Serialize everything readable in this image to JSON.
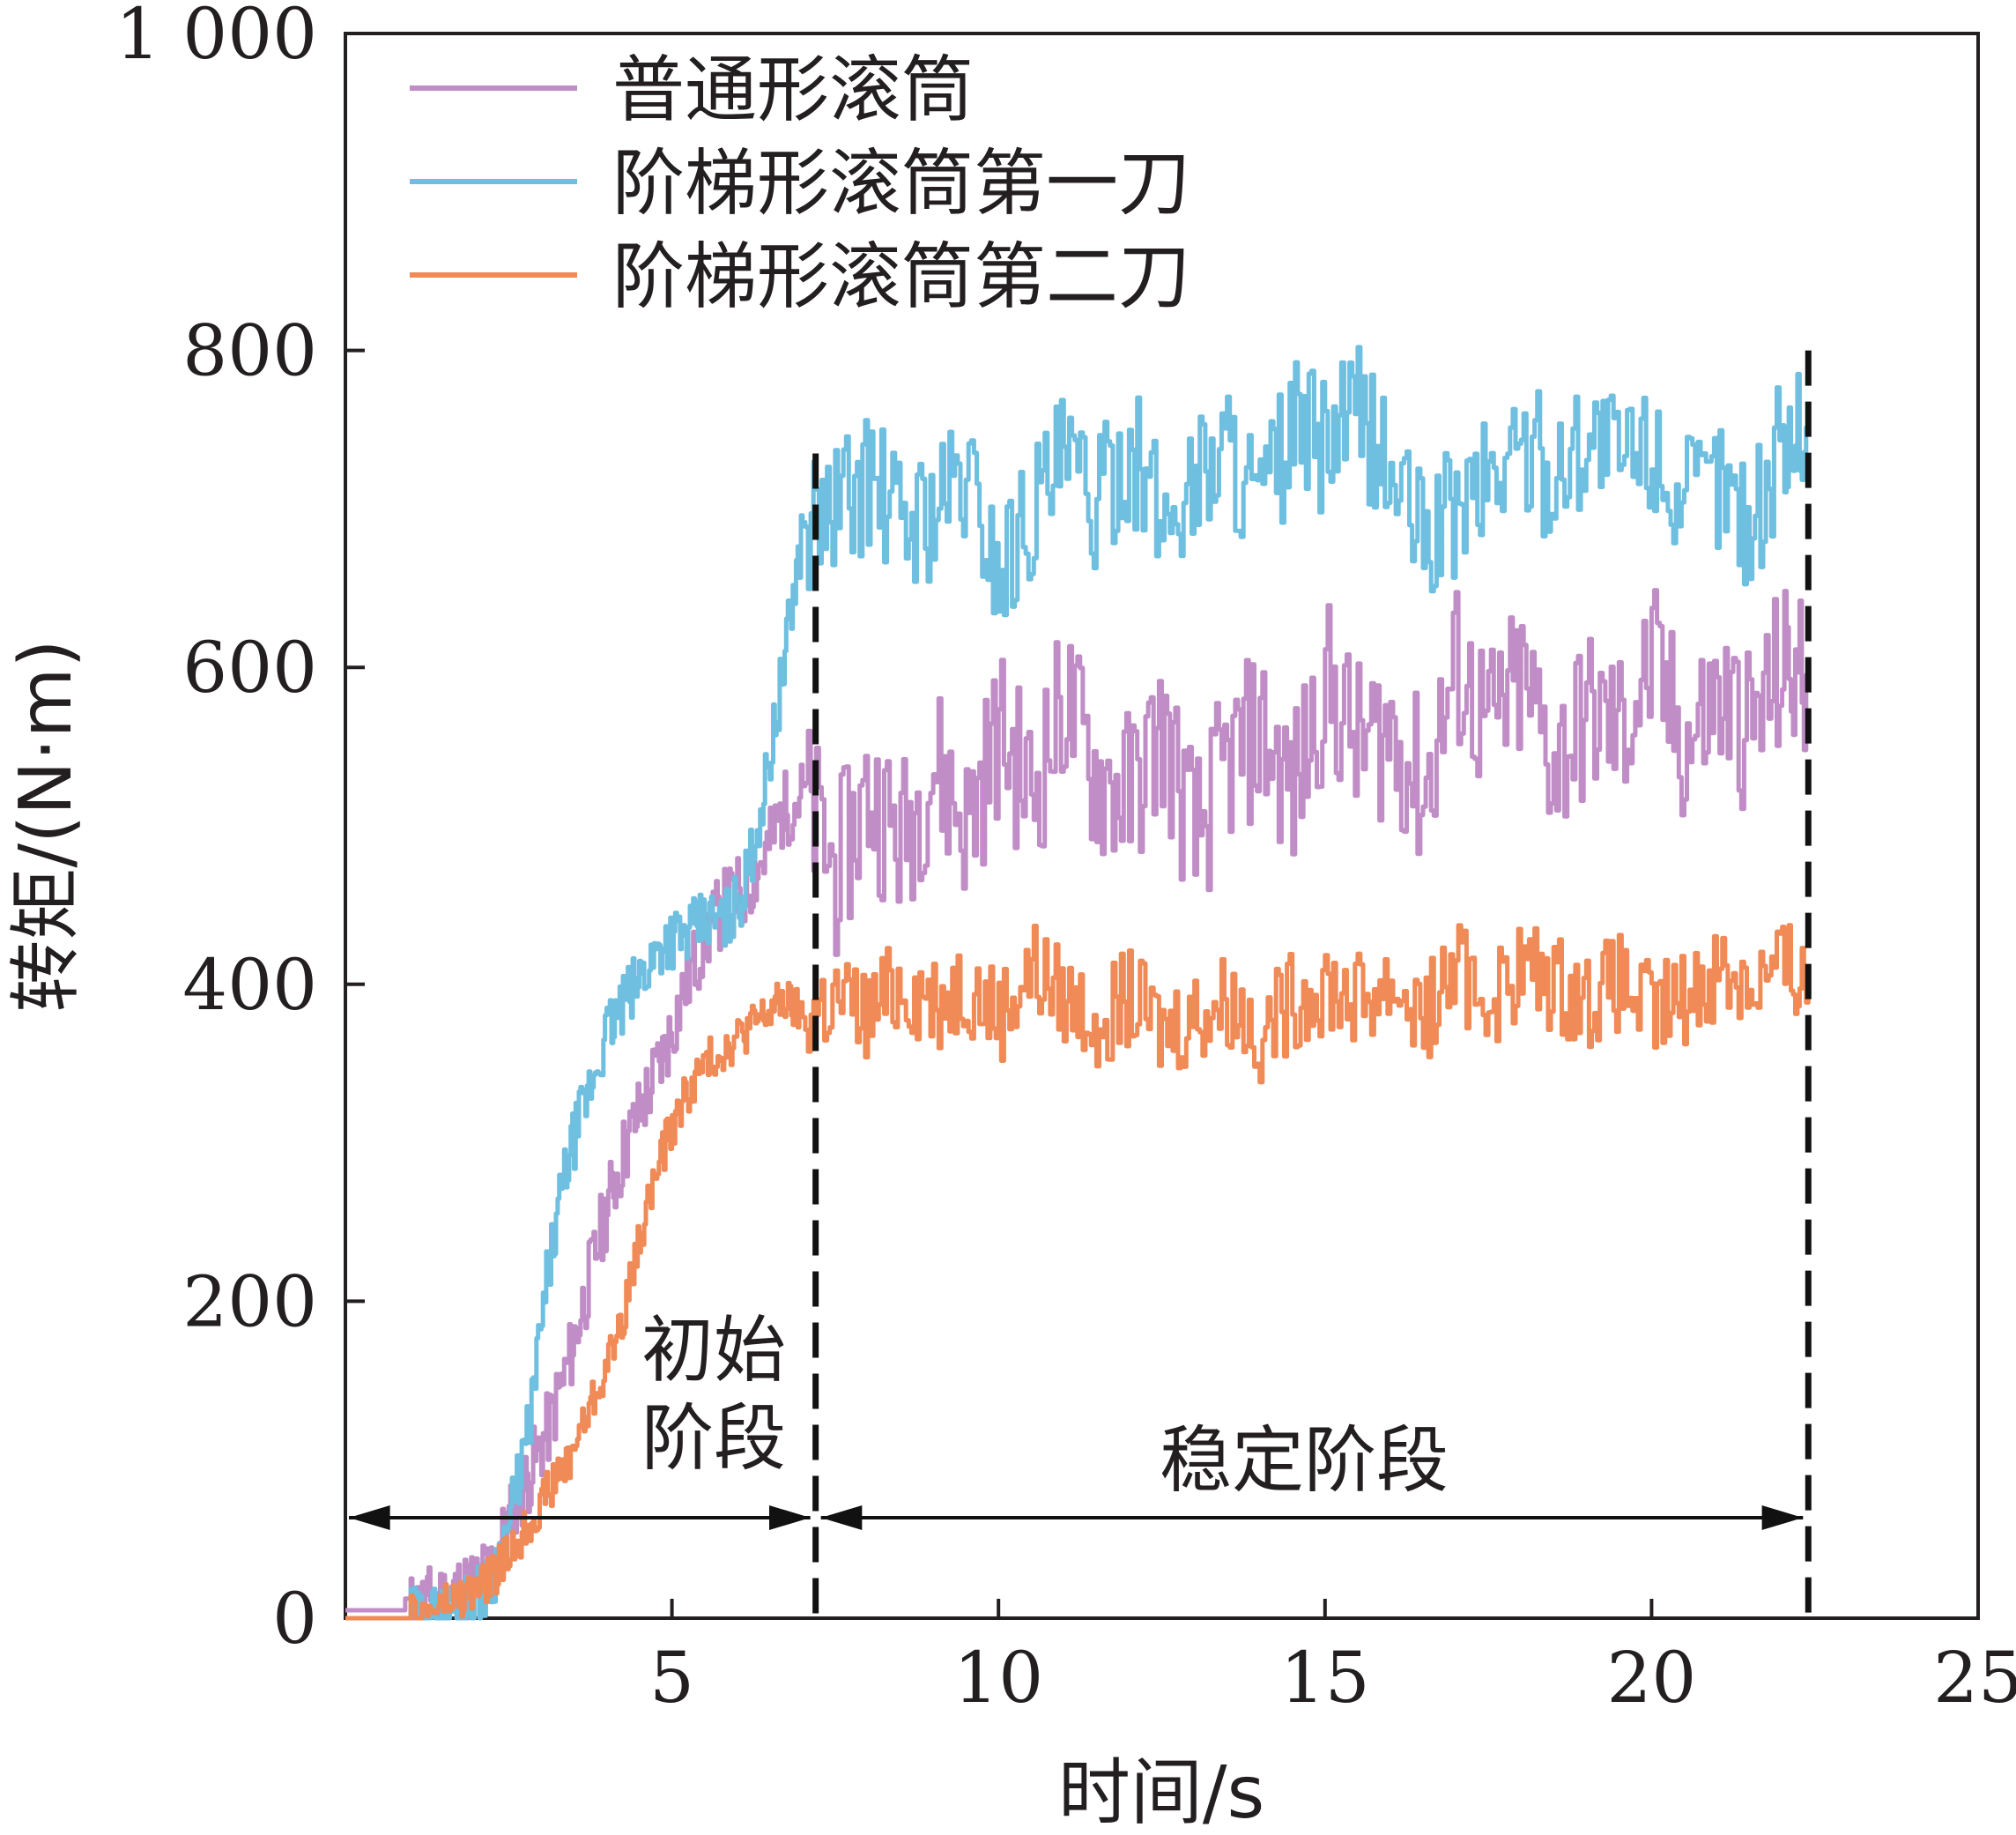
{
  "chart_data": {
    "type": "line",
    "xlabel": "时间/s",
    "ylabel": "转矩/(N·m)",
    "xlim": [
      0,
      25
    ],
    "ylim": [
      0,
      1000
    ],
    "xticks": [
      0,
      5,
      10,
      15,
      20,
      25
    ],
    "yticks": [
      0,
      200,
      400,
      600,
      800,
      1000
    ],
    "xtick_labels": [
      "",
      "5",
      "10",
      "15",
      "20",
      "25"
    ],
    "ytick_labels": [
      "0",
      "200",
      "400",
      "600",
      "800",
      "1 000"
    ],
    "grid": false,
    "legend_position": "top-left",
    "series": [
      {
        "name": "普通形滚筒",
        "color": "#c08dc6",
        "x": [
          0,
          1.0,
          1.3,
          1.6,
          1.9,
          2.2,
          2.5,
          2.8,
          3.1,
          3.4,
          3.7,
          4.0,
          4.3,
          4.6,
          4.9,
          5.2,
          5.5,
          5.8,
          6.1,
          6.4,
          6.7,
          7.0,
          7.5,
          8.0,
          8.5,
          9.0,
          9.5,
          10.0,
          10.5,
          11.0,
          11.5,
          12.0,
          12.5,
          13.0,
          13.5,
          14.0,
          14.5,
          15.0,
          15.5,
          16.0,
          16.5,
          17.0,
          17.5,
          18.0,
          18.5,
          19.0,
          19.5,
          20.0,
          20.5,
          21.0,
          21.5,
          22.0,
          22.4
        ],
        "values": [
          5,
          5,
          10,
          15,
          20,
          30,
          60,
          90,
          120,
          160,
          210,
          260,
          300,
          330,
          360,
          400,
          430,
          450,
          460,
          480,
          510,
          520,
          470,
          520,
          490,
          540,
          500,
          560,
          520,
          580,
          530,
          520,
          560,
          490,
          540,
          560,
          520,
          590,
          550,
          560,
          520,
          600,
          560,
          590,
          540,
          570,
          560,
          600,
          550,
          580,
          560,
          600,
          590
        ]
      },
      {
        "name": "阶梯形滚筒第一刀",
        "color": "#6ebfe0",
        "x": [
          0,
          1.0,
          1.3,
          1.6,
          1.9,
          2.2,
          2.5,
          2.8,
          3.1,
          3.4,
          3.7,
          4.0,
          4.3,
          4.6,
          4.9,
          5.2,
          5.5,
          5.8,
          6.1,
          6.4,
          6.7,
          7.0,
          7.5,
          8.0,
          8.5,
          9.0,
          9.5,
          10.0,
          10.5,
          11.0,
          11.5,
          12.0,
          12.5,
          13.0,
          13.5,
          14.0,
          14.5,
          15.0,
          15.5,
          16.0,
          16.5,
          17.0,
          17.5,
          18.0,
          18.5,
          19.0,
          19.5,
          20.0,
          20.5,
          21.0,
          21.5,
          22.0,
          22.4
        ],
        "values": [
          0,
          0,
          0,
          5,
          10,
          20,
          60,
          120,
          220,
          290,
          330,
          370,
          390,
          410,
          430,
          430,
          440,
          440,
          460,
          520,
          600,
          690,
          700,
          720,
          690,
          700,
          720,
          660,
          700,
          730,
          700,
          740,
          690,
          720,
          740,
          700,
          750,
          740,
          760,
          720,
          680,
          700,
          720,
          740,
          720,
          750,
          730,
          740,
          700,
          720,
          690,
          740,
          760
        ]
      },
      {
        "name": "阶梯形滚筒第二刀",
        "color": "#f08a56",
        "x": [
          0,
          1.0,
          1.3,
          1.6,
          1.9,
          2.2,
          2.5,
          2.8,
          3.1,
          3.4,
          3.7,
          4.0,
          4.3,
          4.6,
          4.9,
          5.2,
          5.5,
          5.8,
          6.1,
          6.4,
          6.7,
          7.0,
          7.5,
          8.0,
          8.5,
          9.0,
          9.5,
          10.0,
          10.5,
          11.0,
          11.5,
          12.0,
          12.5,
          13.0,
          13.5,
          14.0,
          14.5,
          15.0,
          15.5,
          16.0,
          16.5,
          17.0,
          17.5,
          18.0,
          18.5,
          19.0,
          19.5,
          20.0,
          20.5,
          21.0,
          21.5,
          22.0,
          22.4
        ],
        "values": [
          0,
          0,
          5,
          10,
          15,
          25,
          40,
          60,
          80,
          100,
          130,
          160,
          200,
          260,
          300,
          330,
          350,
          360,
          370,
          380,
          390,
          380,
          390,
          380,
          400,
          390,
          400,
          380,
          410,
          390,
          380,
          390,
          370,
          380,
          390,
          370,
          390,
          400,
          390,
          400,
          380,
          410,
          390,
          410,
          400,
          390,
          400,
          380,
          390,
          410,
          400,
          410,
          400
        ]
      }
    ],
    "annotations": {
      "initial_stage": [
        "初始",
        "阶段"
      ],
      "stable_stage": "稳定阶段",
      "boundary_x": [
        7.2,
        22.4
      ]
    }
  }
}
